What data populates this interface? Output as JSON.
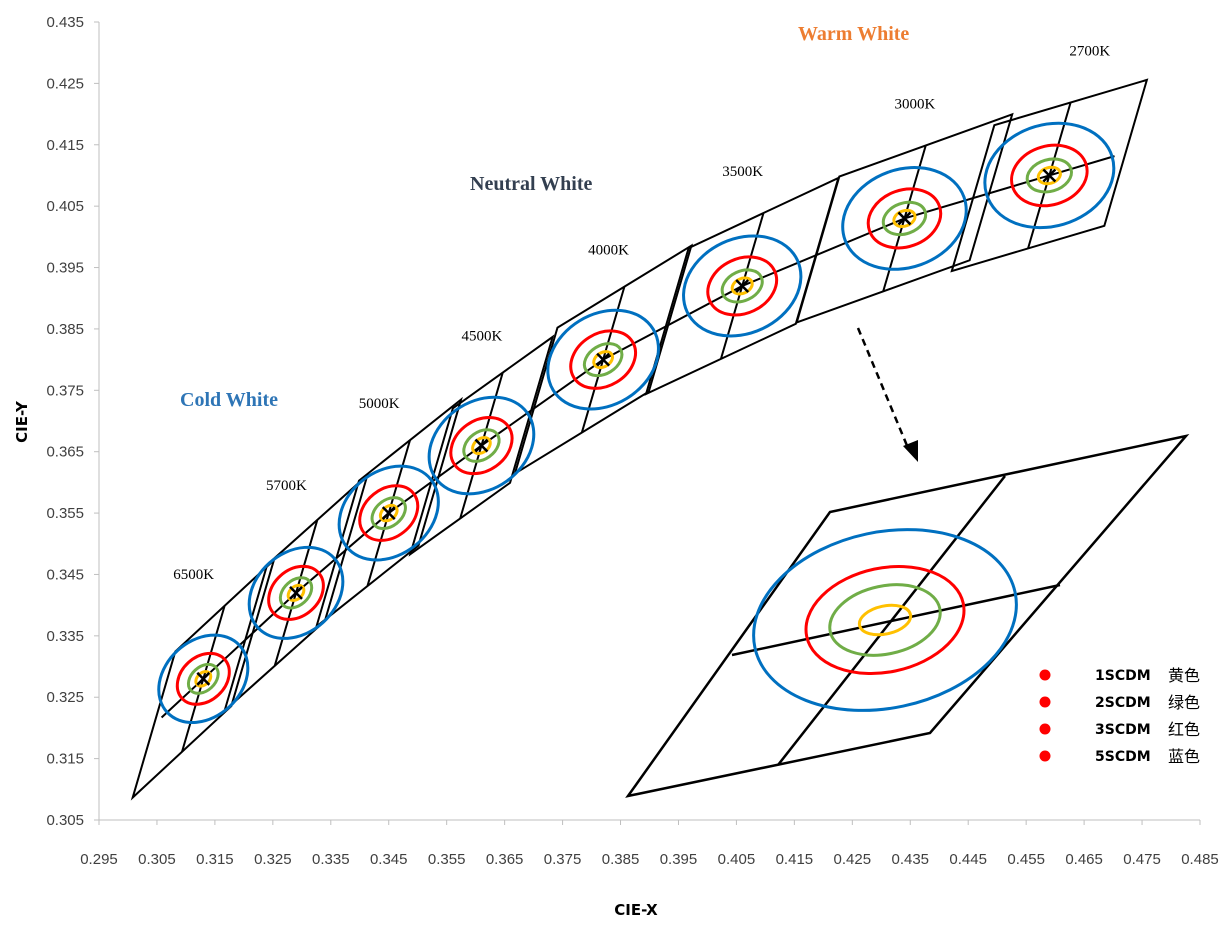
{
  "chart_data": {
    "type": "scatter",
    "title": "",
    "xlabel": "CIE-X",
    "ylabel": "CIE-Y",
    "xlim": [
      0.295,
      0.485
    ],
    "ylim": [
      0.305,
      0.435
    ],
    "x_ticks": [
      "0.295",
      "0.305",
      "0.315",
      "0.325",
      "0.335",
      "0.345",
      "0.355",
      "0.365",
      "0.375",
      "0.385",
      "0.395",
      "0.405",
      "0.415",
      "0.425",
      "0.435",
      "0.445",
      "0.455",
      "0.465",
      "0.475",
      "0.485"
    ],
    "y_ticks": [
      "0.435",
      "0.425",
      "0.415",
      "0.405",
      "0.395",
      "0.385",
      "0.375",
      "0.365",
      "0.355",
      "0.345",
      "0.335",
      "0.325",
      "0.315",
      "0.305"
    ],
    "grid": false,
    "locus_points": [
      {
        "cct": "6500K",
        "x": 0.313,
        "y": 0.328
      },
      {
        "cct": "5700K",
        "x": 0.329,
        "y": 0.342
      },
      {
        "cct": "5000K",
        "x": 0.345,
        "y": 0.355
      },
      {
        "cct": "4500K",
        "x": 0.361,
        "y": 0.366
      },
      {
        "cct": "4000K",
        "x": 0.382,
        "y": 0.38
      },
      {
        "cct": "3500K",
        "x": 0.406,
        "y": 0.392
      },
      {
        "cct": "3000K",
        "x": 0.434,
        "y": 0.403
      },
      {
        "cct": "2700K",
        "x": 0.459,
        "y": 0.41
      }
    ],
    "region_labels": [
      {
        "text": "Cold White",
        "color": "#2e75b6"
      },
      {
        "text": "Neutral White",
        "color": "#333f50"
      },
      {
        "text": "Warm White",
        "color": "#ed7d31"
      }
    ],
    "ellipse_steps": [
      {
        "label": "1SCDM",
        "cn": "黄色",
        "color": "#ffc000"
      },
      {
        "label": "2SCDM",
        "cn": "绿色",
        "color": "#70ad47"
      },
      {
        "label": "3SCDM",
        "cn": "红色",
        "color": "#ff0000"
      },
      {
        "label": "5SCDM",
        "cn": "蓝色",
        "color": "#0070c0"
      }
    ],
    "legend_marker_color": "#ff0000",
    "legend_position": "bottom-right"
  }
}
